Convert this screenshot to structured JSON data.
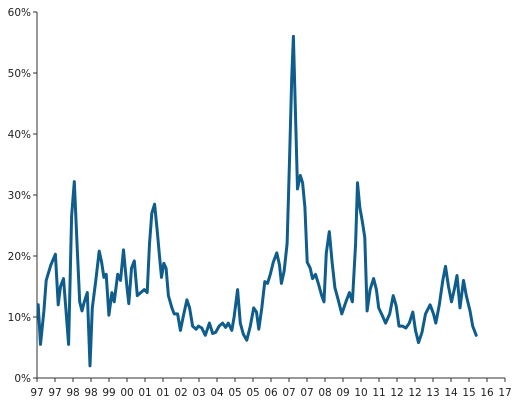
{
  "chart_data": {
    "type": "line",
    "title": "",
    "xlabel": "",
    "ylabel": "",
    "x_ticks": [
      "97",
      "97",
      "98",
      "98",
      "99",
      "00",
      "01",
      "01",
      "02",
      "03",
      "04",
      "05",
      "05",
      "06",
      "07",
      "07",
      "08",
      "09",
      "10",
      "11",
      "12",
      "12",
      "13",
      "14",
      "15",
      "16",
      "17"
    ],
    "y_ticks": [
      "0%",
      "10%",
      "20%",
      "30%",
      "40%",
      "50%",
      "60%"
    ],
    "ylim": [
      0,
      60
    ],
    "xlim": [
      1997.0,
      2017.3
    ],
    "grid": false,
    "series": [
      {
        "color": "#0f5d8c",
        "points": [
          [
            1997.05,
            12.0
          ],
          [
            1997.15,
            5.5
          ],
          [
            1997.3,
            11.0
          ],
          [
            1997.4,
            16.0
          ],
          [
            1997.6,
            18.5
          ],
          [
            1997.8,
            20.3
          ],
          [
            1997.92,
            12.0
          ],
          [
            1998.02,
            15.0
          ],
          [
            1998.15,
            16.3
          ],
          [
            1998.25,
            11.5
          ],
          [
            1998.37,
            5.5
          ],
          [
            1998.5,
            26.5
          ],
          [
            1998.62,
            32.2
          ],
          [
            1998.75,
            21.0
          ],
          [
            1998.85,
            12.5
          ],
          [
            1998.95,
            11.0
          ],
          [
            1999.05,
            12.5
          ],
          [
            1999.18,
            14.0
          ],
          [
            1999.3,
            2.0
          ],
          [
            1999.4,
            11.5
          ],
          [
            1999.55,
            16.0
          ],
          [
            1999.7,
            20.8
          ],
          [
            1999.8,
            19.0
          ],
          [
            1999.9,
            16.5
          ],
          [
            2000.0,
            17.0
          ],
          [
            2000.12,
            10.3
          ],
          [
            2000.25,
            14.0
          ],
          [
            2000.35,
            12.5
          ],
          [
            2000.5,
            17.0
          ],
          [
            2000.62,
            16.0
          ],
          [
            2000.75,
            21.0
          ],
          [
            2000.9,
            15.0
          ],
          [
            2000.98,
            12.2
          ],
          [
            2001.1,
            18.0
          ],
          [
            2001.22,
            19.2
          ],
          [
            2001.35,
            13.5
          ],
          [
            2001.5,
            14.0
          ],
          [
            2001.65,
            14.5
          ],
          [
            2001.78,
            14.0
          ],
          [
            2001.88,
            22.0
          ],
          [
            2001.98,
            27.0
          ],
          [
            2002.1,
            28.5
          ],
          [
            2002.22,
            24.0
          ],
          [
            2002.3,
            20.5
          ],
          [
            2002.4,
            16.5
          ],
          [
            2002.5,
            18.8
          ],
          [
            2002.6,
            18.0
          ],
          [
            2002.7,
            13.5
          ],
          [
            2002.85,
            11.5
          ],
          [
            2002.95,
            10.5
          ],
          [
            2003.1,
            10.5
          ],
          [
            2003.22,
            7.8
          ],
          [
            2003.35,
            10.2
          ],
          [
            2003.5,
            12.8
          ],
          [
            2003.62,
            11.5
          ],
          [
            2003.75,
            8.5
          ],
          [
            2003.9,
            8.0
          ],
          [
            2004.0,
            8.5
          ],
          [
            2004.15,
            8.2
          ],
          [
            2004.3,
            7.0
          ],
          [
            2004.48,
            9.0
          ],
          [
            2004.62,
            7.3
          ],
          [
            2004.75,
            7.5
          ],
          [
            2004.9,
            8.5
          ],
          [
            2005.05,
            9.0
          ],
          [
            2005.18,
            8.3
          ],
          [
            2005.3,
            9.0
          ],
          [
            2005.45,
            7.8
          ],
          [
            2005.55,
            10.0
          ],
          [
            2005.7,
            14.5
          ],
          [
            2005.82,
            9.0
          ],
          [
            2005.95,
            7.2
          ],
          [
            2006.1,
            6.2
          ],
          [
            2006.25,
            8.5
          ],
          [
            2006.4,
            11.5
          ],
          [
            2006.52,
            10.8
          ],
          [
            2006.62,
            8.0
          ],
          [
            2006.75,
            11.5
          ],
          [
            2006.88,
            15.8
          ],
          [
            2007.0,
            15.5
          ],
          [
            2007.12,
            17.0
          ],
          [
            2007.25,
            19.0
          ],
          [
            2007.4,
            20.5
          ],
          [
            2007.52,
            18.5
          ],
          [
            2007.6,
            15.5
          ],
          [
            2007.72,
            17.5
          ],
          [
            2007.85,
            22.0
          ],
          [
            2007.95,
            35.0
          ],
          [
            2008.05,
            49.0
          ],
          [
            2008.12,
            56.0
          ],
          [
            2008.2,
            45.0
          ],
          [
            2008.3,
            31.0
          ],
          [
            2008.42,
            33.2
          ],
          [
            2008.52,
            32.0
          ],
          [
            2008.62,
            28.0
          ],
          [
            2008.72,
            19.0
          ],
          [
            2008.85,
            18.0
          ],
          [
            2008.95,
            16.3
          ],
          [
            2009.08,
            17.0
          ],
          [
            2009.2,
            15.5
          ],
          [
            2009.35,
            13.5
          ],
          [
            2009.45,
            12.5
          ],
          [
            2009.55,
            20.5
          ],
          [
            2009.68,
            24.0
          ],
          [
            2009.8,
            19.0
          ],
          [
            2009.92,
            14.8
          ],
          [
            2010.05,
            13.0
          ],
          [
            2010.22,
            10.5
          ],
          [
            2010.4,
            12.5
          ],
          [
            2010.55,
            14.0
          ],
          [
            2010.68,
            12.5
          ],
          [
            2010.82,
            22.0
          ],
          [
            2010.9,
            32.0
          ],
          [
            2011.0,
            28.0
          ],
          [
            2011.12,
            25.5
          ],
          [
            2011.22,
            23.0
          ],
          [
            2011.32,
            11.0
          ],
          [
            2011.45,
            14.5
          ],
          [
            2011.6,
            16.3
          ],
          [
            2011.72,
            14.5
          ],
          [
            2011.82,
            11.5
          ],
          [
            2011.98,
            10.2
          ],
          [
            2012.12,
            9.0
          ],
          [
            2012.3,
            10.5
          ],
          [
            2012.45,
            13.5
          ],
          [
            2012.58,
            11.8
          ],
          [
            2012.7,
            8.5
          ],
          [
            2012.85,
            8.5
          ],
          [
            2013.0,
            8.2
          ],
          [
            2013.15,
            9.0
          ],
          [
            2013.3,
            10.8
          ],
          [
            2013.42,
            7.8
          ],
          [
            2013.55,
            5.8
          ],
          [
            2013.7,
            7.5
          ],
          [
            2013.85,
            10.5
          ],
          [
            2014.05,
            12.0
          ],
          [
            2014.2,
            10.5
          ],
          [
            2014.3,
            9.0
          ],
          [
            2014.45,
            12.0
          ],
          [
            2014.6,
            16.0
          ],
          [
            2014.72,
            18.3
          ],
          [
            2014.85,
            15.0
          ],
          [
            2014.98,
            12.5
          ],
          [
            2015.1,
            14.5
          ],
          [
            2015.22,
            16.8
          ],
          [
            2015.35,
            11.5
          ],
          [
            2015.5,
            16.0
          ],
          [
            2015.62,
            13.5
          ],
          [
            2015.78,
            11.0
          ],
          [
            2015.9,
            8.5
          ],
          [
            2016.05,
            7.0
          ]
        ]
      }
    ]
  }
}
